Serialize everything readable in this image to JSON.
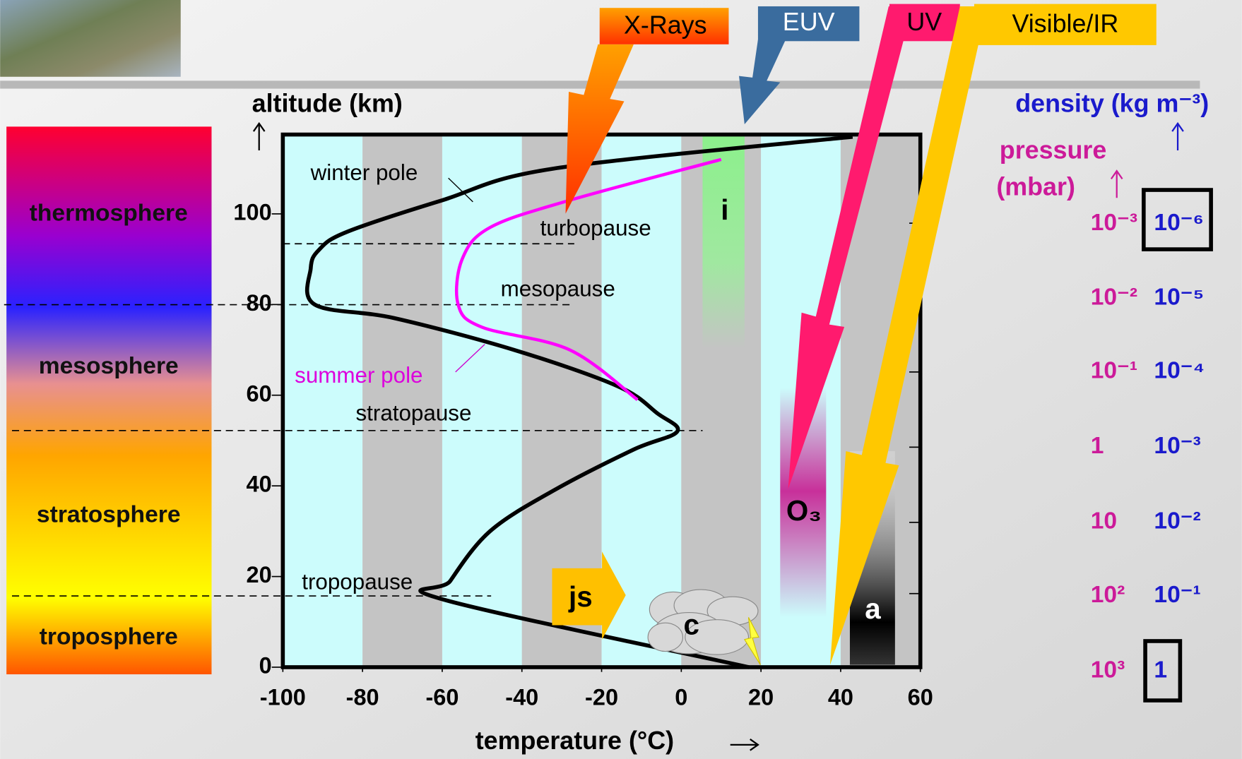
{
  "chart_data": {
    "type": "line",
    "x_label": "temperature (°C)",
    "y_label": "altitude (km)",
    "xlim": [
      -100,
      60
    ],
    "ylim": [
      0,
      117.5
    ],
    "xticks": [
      -100,
      -80,
      -60,
      -40,
      -20,
      0,
      20,
      40,
      60
    ],
    "yticks": [
      0,
      20,
      40,
      60,
      80,
      100
    ],
    "series": [
      {
        "name": "winter pole",
        "color": "#000000",
        "x": [
          17,
          -60,
          -58,
          -48,
          -32,
          -12,
          -1,
          -6,
          -16,
          -42,
          -72,
          -92,
          -93,
          -91,
          -84,
          -60,
          -32,
          43
        ],
        "values": [
          0,
          15,
          19,
          30,
          39,
          48,
          52,
          56,
          62,
          70,
          77,
          80,
          88,
          92,
          96,
          103,
          110,
          117
        ]
      },
      {
        "name": "summer pole",
        "color": "#ff00ff",
        "x": [
          -11,
          -28,
          -50,
          -56,
          -55,
          -48,
          -28,
          10
        ],
        "values": [
          59,
          70,
          75,
          80,
          90,
          97,
          103,
          112
        ]
      }
    ],
    "annotations": [
      "turbopause",
      "mesopause",
      "stratopause",
      "tropopause"
    ],
    "layers": [
      "thermosphere",
      "mesosphere",
      "stratosphere",
      "troposphere"
    ],
    "radiation": [
      "X-Rays",
      "EUV",
      "UV",
      "Visible/IR"
    ],
    "markers": [
      "i",
      "O₃",
      "a",
      "js",
      "c"
    ],
    "pressure_title": [
      "pressure",
      "(mbar)"
    ],
    "pressure_levels": [
      "10⁻³",
      "10⁻²",
      "10⁻¹",
      "1",
      "10",
      "10²",
      "10³"
    ],
    "density_title": "density (kg m⁻³)",
    "density_levels": [
      "10⁻⁶",
      "10⁻⁵",
      "10⁻⁴",
      "10⁻³",
      "10⁻²",
      "10⁻¹",
      "1"
    ]
  }
}
